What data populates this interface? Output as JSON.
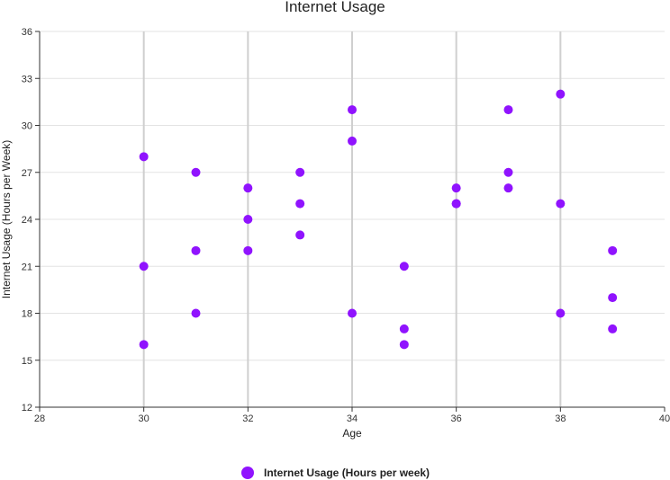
{
  "chart_data": {
    "type": "scatter",
    "title": "Internet Usage",
    "xlabel": "Age",
    "ylabel": "Internet Usage (Hours per Week)",
    "xlim": [
      28,
      40
    ],
    "ylim": [
      12,
      36
    ],
    "x_ticks": [
      28,
      30,
      32,
      34,
      36,
      38,
      40
    ],
    "y_ticks": [
      12,
      15,
      18,
      21,
      24,
      27,
      30,
      33,
      36
    ],
    "grid": "on",
    "legend_position": "bottom",
    "series": [
      {
        "name": "Internet Usage (Hours per week)",
        "color": "#9013FE",
        "points": [
          {
            "x": 30,
            "y": 28
          },
          {
            "x": 30,
            "y": 21
          },
          {
            "x": 30,
            "y": 16
          },
          {
            "x": 31,
            "y": 27
          },
          {
            "x": 31,
            "y": 22
          },
          {
            "x": 31,
            "y": 18
          },
          {
            "x": 32,
            "y": 26
          },
          {
            "x": 32,
            "y": 24
          },
          {
            "x": 32,
            "y": 22
          },
          {
            "x": 33,
            "y": 27
          },
          {
            "x": 33,
            "y": 25
          },
          {
            "x": 33,
            "y": 23
          },
          {
            "x": 34,
            "y": 31
          },
          {
            "x": 34,
            "y": 29
          },
          {
            "x": 34,
            "y": 18
          },
          {
            "x": 35,
            "y": 21
          },
          {
            "x": 35,
            "y": 17
          },
          {
            "x": 35,
            "y": 16
          },
          {
            "x": 36,
            "y": 26
          },
          {
            "x": 36,
            "y": 25
          },
          {
            "x": 36,
            "y": 25
          },
          {
            "x": 37,
            "y": 31
          },
          {
            "x": 37,
            "y": 27
          },
          {
            "x": 37,
            "y": 26
          },
          {
            "x": 38,
            "y": 32
          },
          {
            "x": 38,
            "y": 25
          },
          {
            "x": 38,
            "y": 18
          },
          {
            "x": 39,
            "y": 22
          },
          {
            "x": 39,
            "y": 19
          },
          {
            "x": 39,
            "y": 17
          }
        ]
      }
    ]
  }
}
